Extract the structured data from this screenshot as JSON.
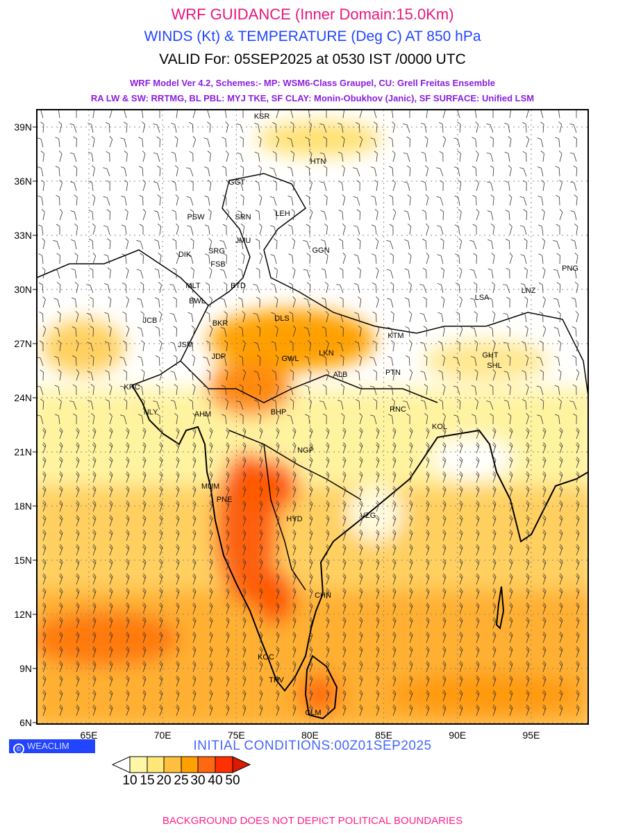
{
  "header": {
    "title": "WRF GUIDANCE (Inner Domain:15.0Km)",
    "subtitle": "WINDS (Kt) & TEMPERATURE (Deg C) AT 850 hPa",
    "valid": "VALID For: 05SEP2025 at 0530 IST /0000 UTC",
    "model_line1": "WRF Model Ver 4.2, Schemes:- MP: WSM6-Class Graupel, CU: Grell Freitas Ensemble",
    "model_line2": "RA LW & SW: RRTMG, BL PBL: MYJ TKE, SF CLAY: Monin-Obukhov (Janic), SF SURFACE: Unified LSM"
  },
  "map": {
    "lat_labels": [
      "39N",
      "36N",
      "33N",
      "30N",
      "27N",
      "24N",
      "21N",
      "18N",
      "15N",
      "12N",
      "9N",
      "6N"
    ],
    "lon_labels": [
      "65E",
      "70E",
      "75E",
      "80E",
      "85E",
      "90E",
      "95E"
    ],
    "cities": [
      "KSR",
      "HTN",
      "GGT",
      "LEH",
      "SRN",
      "PSW",
      "JMU",
      "GGN",
      "DIK",
      "SRG",
      "FSB",
      "PNG",
      "MLT",
      "BTD",
      "LSA",
      "LNZ",
      "BWL",
      "JCB",
      "BKR",
      "DLS",
      "KTM",
      "JSM",
      "JDP",
      "LKN",
      "GHT",
      "SHL",
      "GWL",
      "PTN",
      "ALB",
      "KRC",
      "BHP",
      "RNC",
      "NLY",
      "AHM",
      "KOL",
      "NGP",
      "MUM",
      "PNE",
      "HYD",
      "VZG",
      "CHN",
      "KOC",
      "TRV",
      "CLM"
    ]
  },
  "branding": {
    "copyright_symbol": "©",
    "name": "WEACLIM"
  },
  "initial_conditions": "INITIAL CONDITIONS:00Z01SEP2025",
  "colorbar": {
    "labels": [
      "10",
      "15",
      "20",
      "25",
      "30",
      "40",
      "50"
    ],
    "colors": [
      "#ffffff",
      "#fff6a8",
      "#ffe878",
      "#ffc040",
      "#ffa000",
      "#ff6810",
      "#ff3000",
      "#dd1800"
    ]
  },
  "footer": "BACKGROUND DOES NOT DEPICT POLITICAL BOUNDARIES"
}
